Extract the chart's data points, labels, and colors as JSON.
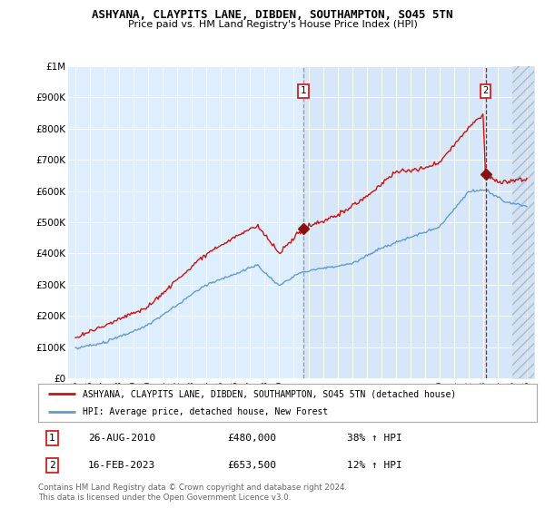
{
  "title": "ASHYANA, CLAYPITS LANE, DIBDEN, SOUTHAMPTON, SO45 5TN",
  "subtitle": "Price paid vs. HM Land Registry's House Price Index (HPI)",
  "plot_bg": "#ddeeff",
  "legend_label_red": "ASHYANA, CLAYPITS LANE, DIBDEN, SOUTHAMPTON, SO45 5TN (detached house)",
  "legend_label_blue": "HPI: Average price, detached house, New Forest",
  "transaction1_date": "26-AUG-2010",
  "transaction1_price": 480000,
  "transaction1_hpi": "38% ↑ HPI",
  "transaction2_date": "16-FEB-2023",
  "transaction2_price": 653500,
  "transaction2_hpi": "12% ↑ HPI",
  "footer": "Contains HM Land Registry data © Crown copyright and database right 2024.\nThis data is licensed under the Open Government Licence v3.0.",
  "ylim_max": 1000000,
  "yticks": [
    0,
    100000,
    200000,
    300000,
    400000,
    500000,
    600000,
    700000,
    800000,
    900000,
    1000000
  ],
  "ytick_labels": [
    "£0",
    "£100K",
    "£200K",
    "£300K",
    "£400K",
    "£500K",
    "£600K",
    "£700K",
    "£800K",
    "£900K",
    "£1M"
  ]
}
